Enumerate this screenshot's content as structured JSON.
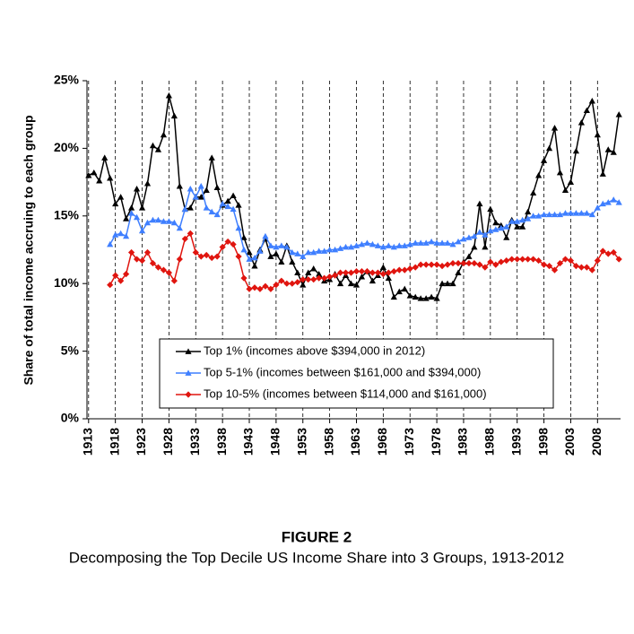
{
  "chart_data": {
    "type": "line",
    "title": "FIGURE 2",
    "subtitle": "Decomposing the Top Decile US Income Share into 3 Groups, 1913-2012",
    "ylabel": "Share of total income accruing to each group",
    "x": [
      1913,
      1914,
      1915,
      1916,
      1917,
      1918,
      1919,
      1920,
      1921,
      1922,
      1923,
      1924,
      1925,
      1926,
      1927,
      1928,
      1929,
      1930,
      1931,
      1932,
      1933,
      1934,
      1935,
      1936,
      1937,
      1938,
      1939,
      1940,
      1941,
      1942,
      1943,
      1944,
      1945,
      1946,
      1947,
      1948,
      1949,
      1950,
      1951,
      1952,
      1953,
      1954,
      1955,
      1956,
      1957,
      1958,
      1959,
      1960,
      1961,
      1962,
      1963,
      1964,
      1965,
      1966,
      1967,
      1968,
      1969,
      1970,
      1971,
      1972,
      1973,
      1974,
      1975,
      1976,
      1977,
      1978,
      1979,
      1980,
      1981,
      1982,
      1983,
      1984,
      1985,
      1986,
      1987,
      1988,
      1989,
      1990,
      1991,
      1992,
      1993,
      1994,
      1995,
      1996,
      1997,
      1998,
      1999,
      2000,
      2001,
      2002,
      2003,
      2004,
      2005,
      2006,
      2007,
      2008,
      2009,
      2010,
      2011,
      2012
    ],
    "series": [
      {
        "name": "Top 1% (incomes above $394,000 in 2012)",
        "color": "#000000",
        "marker": "triangle",
        "values": [
          18.0,
          18.2,
          17.6,
          19.3,
          17.8,
          15.9,
          16.4,
          14.8,
          15.6,
          17.0,
          15.6,
          17.4,
          20.2,
          19.9,
          21.0,
          23.9,
          22.4,
          17.2,
          15.5,
          15.6,
          16.4,
          16.4,
          16.9,
          19.3,
          17.1,
          15.8,
          16.1,
          16.5,
          15.8,
          13.4,
          12.3,
          11.3,
          12.5,
          13.3,
          12.0,
          12.2,
          11.6,
          12.8,
          11.6,
          10.8,
          9.9,
          10.8,
          11.1,
          10.7,
          10.2,
          10.3,
          10.7,
          10.0,
          10.6,
          10.0,
          9.9,
          10.5,
          10.9,
          10.2,
          10.6,
          11.2,
          10.4,
          9.0,
          9.4,
          9.6,
          9.1,
          9.0,
          8.9,
          8.9,
          9.0,
          8.9,
          10.0,
          10.0,
          10.0,
          10.8,
          11.6,
          12.0,
          12.7,
          15.9,
          12.7,
          15.5,
          14.5,
          14.3,
          13.4,
          14.7,
          14.2,
          14.2,
          15.3,
          16.7,
          18.0,
          19.1,
          20.0,
          21.5,
          18.2,
          16.9,
          17.5,
          19.8,
          21.9,
          22.8,
          23.5,
          21.0,
          18.1,
          19.9,
          19.7,
          22.5
        ]
      },
      {
        "name": "Top 5-1% (incomes between $161,000 and $394,000)",
        "color": "#3f7fff",
        "marker": "triangle",
        "values": [
          null,
          null,
          null,
          null,
          12.9,
          13.6,
          13.7,
          13.5,
          15.2,
          14.9,
          13.9,
          14.5,
          14.7,
          14.7,
          14.6,
          14.6,
          14.5,
          14.1,
          15.5,
          17.0,
          16.4,
          17.2,
          15.6,
          15.3,
          15.1,
          15.9,
          15.7,
          15.5,
          14.1,
          12.5,
          11.8,
          11.9,
          12.4,
          13.5,
          12.8,
          12.7,
          12.8,
          12.7,
          12.3,
          12.2,
          12.0,
          12.3,
          12.3,
          12.4,
          12.4,
          12.5,
          12.5,
          12.6,
          12.7,
          12.7,
          12.8,
          12.9,
          13.0,
          12.9,
          12.8,
          12.7,
          12.8,
          12.7,
          12.8,
          12.8,
          12.9,
          13.0,
          13.0,
          13.0,
          13.1,
          13.0,
          13.0,
          13.0,
          12.9,
          13.1,
          13.3,
          13.4,
          13.5,
          13.8,
          13.6,
          13.9,
          14.0,
          14.1,
          14.2,
          14.6,
          14.6,
          14.7,
          14.8,
          15.0,
          15.0,
          15.1,
          15.1,
          15.1,
          15.1,
          15.2,
          15.2,
          15.2,
          15.2,
          15.2,
          15.1,
          15.6,
          15.9,
          16.0,
          16.2,
          16.0
        ]
      },
      {
        "name": "Top 10-5% (incomes between $114,000 and $161,000)",
        "color": "#e0150f",
        "marker": "diamond",
        "values": [
          null,
          null,
          null,
          null,
          9.9,
          10.6,
          10.2,
          10.7,
          12.3,
          11.8,
          11.7,
          12.3,
          11.5,
          11.2,
          11.0,
          10.8,
          10.2,
          11.8,
          13.3,
          13.7,
          12.3,
          12.0,
          12.1,
          11.9,
          12.0,
          12.7,
          13.1,
          12.9,
          12.0,
          10.4,
          9.6,
          9.7,
          9.6,
          9.8,
          9.6,
          9.9,
          10.2,
          10.0,
          10.0,
          10.1,
          10.3,
          10.3,
          10.3,
          10.4,
          10.4,
          10.5,
          10.6,
          10.8,
          10.8,
          10.8,
          10.9,
          10.9,
          10.9,
          10.8,
          10.8,
          10.7,
          10.8,
          10.9,
          11.0,
          11.0,
          11.1,
          11.2,
          11.4,
          11.4,
          11.4,
          11.4,
          11.3,
          11.4,
          11.5,
          11.5,
          11.5,
          11.5,
          11.5,
          11.4,
          11.2,
          11.6,
          11.4,
          11.6,
          11.7,
          11.8,
          11.8,
          11.8,
          11.8,
          11.8,
          11.7,
          11.4,
          11.3,
          11.0,
          11.5,
          11.8,
          11.7,
          11.3,
          11.2,
          11.2,
          11.0,
          11.7,
          12.4,
          12.2,
          12.3,
          11.8
        ]
      }
    ],
    "xlim": [
      1912.7,
      2012.3
    ],
    "xticks": [
      1913,
      1918,
      1923,
      1928,
      1933,
      1938,
      1943,
      1948,
      1953,
      1958,
      1963,
      1968,
      1973,
      1978,
      1983,
      1988,
      1993,
      1998,
      2003,
      2008
    ],
    "ylim": [
      0,
      25
    ],
    "yticks": [
      {
        "value": 0,
        "label": "0%"
      },
      {
        "value": 5,
        "label": "5%"
      },
      {
        "value": 10,
        "label": "10%"
      },
      {
        "value": 15,
        "label": "15%"
      },
      {
        "value": 20,
        "label": "20%"
      },
      {
        "value": 25,
        "label": "25%"
      }
    ],
    "grid": "x",
    "legend": "bottom"
  }
}
